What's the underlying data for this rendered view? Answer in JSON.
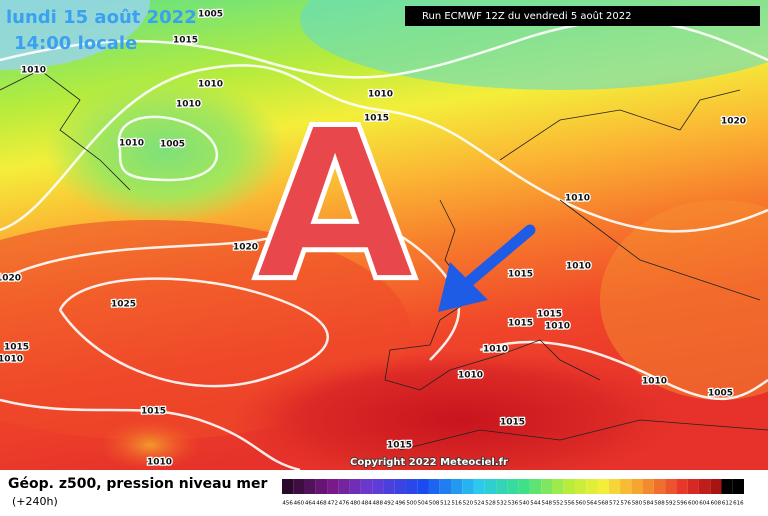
{
  "header": {
    "date": "lundi 15 août 2022",
    "time": "14:00 locale",
    "run": "Run ECMWF 12Z du vendredi 5 août 2022"
  },
  "map": {
    "symbol": "A",
    "copyright": "Copyright 2022 Meteociel.fr",
    "isobar_labels": [
      "1005",
      "1015",
      "1010",
      "1010",
      "1010",
      "1010",
      "1015",
      "1010",
      "1005",
      "1020",
      "1010",
      "1020",
      "1020",
      "1025",
      "1015",
      "1010",
      "1015",
      "1015",
      "1010",
      "1010",
      "1015",
      "1010",
      "1010",
      "1010",
      "1005",
      "1015",
      "1015",
      "1015",
      "1010"
    ]
  },
  "legend": {
    "title": "Géop. z500, pression niveau mer",
    "lead": "(+240h)",
    "scale": [
      "456",
      "460",
      "464",
      "468",
      "472",
      "476",
      "480",
      "484",
      "488",
      "492",
      "496",
      "500",
      "504",
      "508",
      "512",
      "516",
      "520",
      "524",
      "528",
      "532",
      "536",
      "540",
      "544",
      "548",
      "552",
      "556",
      "560",
      "564",
      "568",
      "572",
      "576",
      "580",
      "584",
      "588",
      "592",
      "596",
      "600",
      "604",
      "608",
      "612",
      "616"
    ]
  }
}
